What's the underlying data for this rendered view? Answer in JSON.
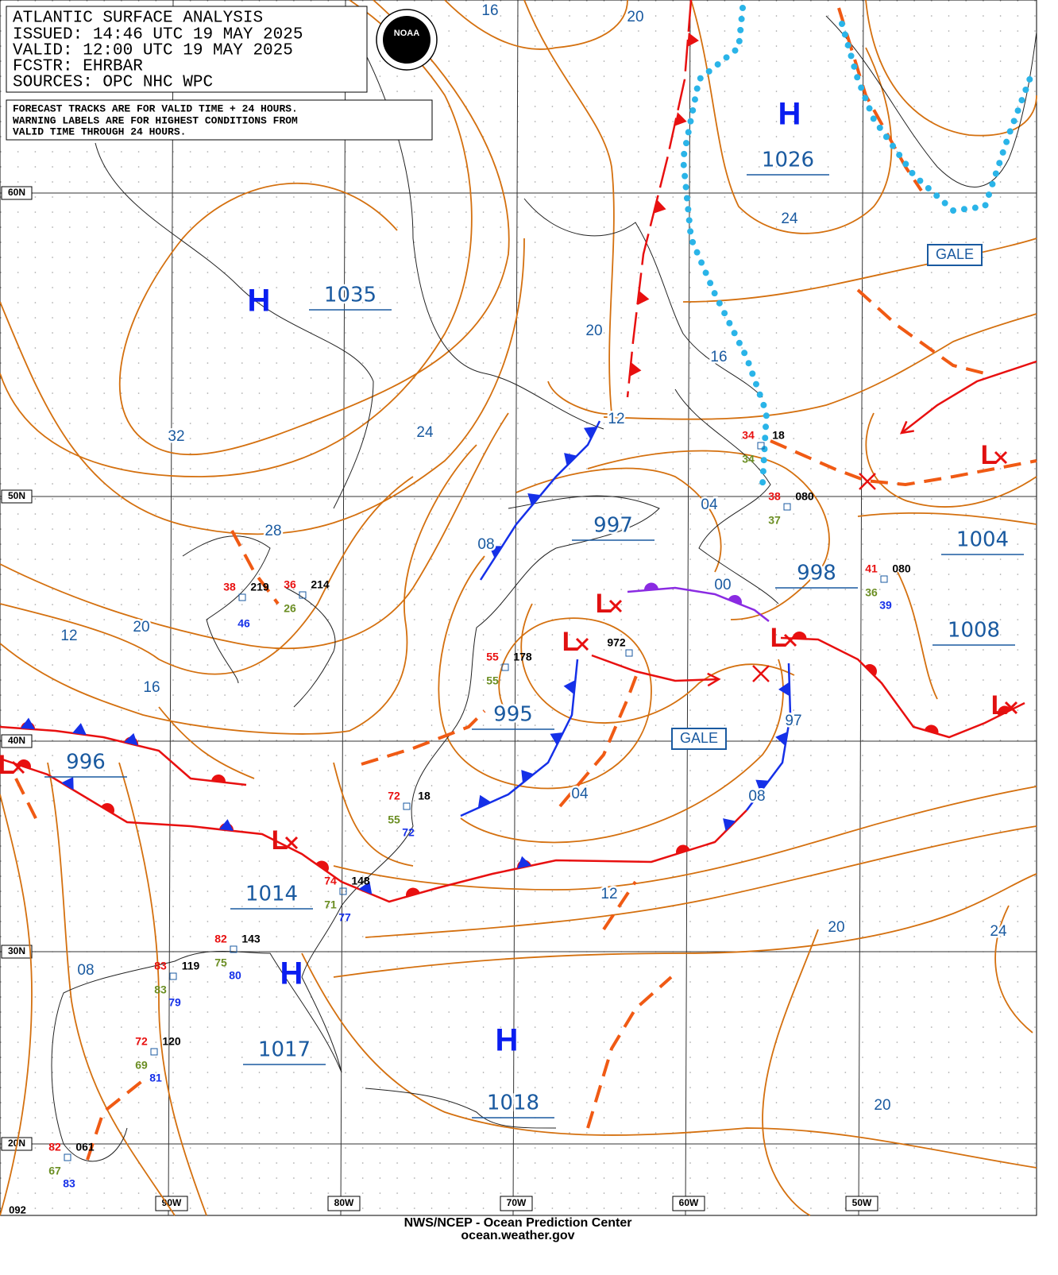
{
  "header": {
    "title": "ATLANTIC SURFACE ANALYSIS",
    "issued": "ISSUED: 14:46 UTC 19 MAY 2025",
    "valid": "VALID:  12:00 UTC 19 MAY 2025",
    "forecaster": "FCSTR:  EHRBAR",
    "sources": "SOURCES: OPC NHC WPC",
    "logo": "NOAA"
  },
  "notes": [
    "FORECAST TRACKS ARE FOR VALID TIME + 24 HOURS.",
    "WARNING LABELS ARE FOR HIGHEST CONDITIONS FROM",
    "VALID TIME THROUGH 24 HOURS."
  ],
  "latitudes": [
    "60N",
    "50N",
    "40N",
    "30N",
    "20N"
  ],
  "longitudes": [
    "90W",
    "80W",
    "70W",
    "60W",
    "50W"
  ],
  "highs": [
    {
      "symbol": "H",
      "pressure": "1035"
    },
    {
      "symbol": "H",
      "pressure": "1026"
    },
    {
      "symbol": "H",
      "pressure": "1017"
    },
    {
      "symbol": "H",
      "pressure": "1018"
    }
  ],
  "lows": [
    {
      "symbol": "L",
      "pressure": "997"
    },
    {
      "symbol": "L",
      "pressure": "995"
    },
    {
      "symbol": "L",
      "pressure": "996"
    },
    {
      "symbol": "L",
      "pressure": "1014"
    },
    {
      "symbol": "L",
      "pressure": "998"
    },
    {
      "symbol": "L",
      "pressure": "1004"
    },
    {
      "symbol": "L",
      "pressure": "1008"
    }
  ],
  "isobar_labels": [
    "16",
    "20",
    "24",
    "16",
    "20",
    "12",
    "24",
    "32",
    "28",
    "20",
    "12",
    "16",
    "08",
    "04",
    "00",
    "04",
    "08",
    "12",
    "20",
    "24",
    "08",
    "20",
    "97"
  ],
  "warnings": [
    "GALE",
    "GALE"
  ],
  "stations": [
    {
      "t": "36",
      "d": "26",
      "p": "214"
    },
    {
      "t": "38",
      "p": "219",
      "v": "46"
    },
    {
      "t": "72",
      "d": "55",
      "p": "18",
      "v": "72"
    },
    {
      "t": "74",
      "d": "71",
      "p": "148",
      "v": "77"
    },
    {
      "t": "82",
      "d": "75",
      "p": "143",
      "v": "80"
    },
    {
      "t": "83",
      "d": "83",
      "p": "119",
      "v": "79"
    },
    {
      "t": "72",
      "d": "69",
      "p": "120",
      "v": "81"
    },
    {
      "t": "82",
      "d": "67",
      "p": "061",
      "v": "83"
    },
    {
      "t": "55",
      "d": "55",
      "p": "178"
    },
    {
      "t": "38",
      "d": "37",
      "p": "080"
    },
    {
      "t": "41",
      "d": "36",
      "p": "080",
      "v": "39"
    },
    {
      "t": "34",
      "d": "34",
      "p": "18"
    },
    {
      "p": "972"
    }
  ],
  "corner_code": "092",
  "footer": {
    "credit": "NWS/NCEP - Ocean Prediction Center",
    "url": "ocean.weather.gov"
  }
}
